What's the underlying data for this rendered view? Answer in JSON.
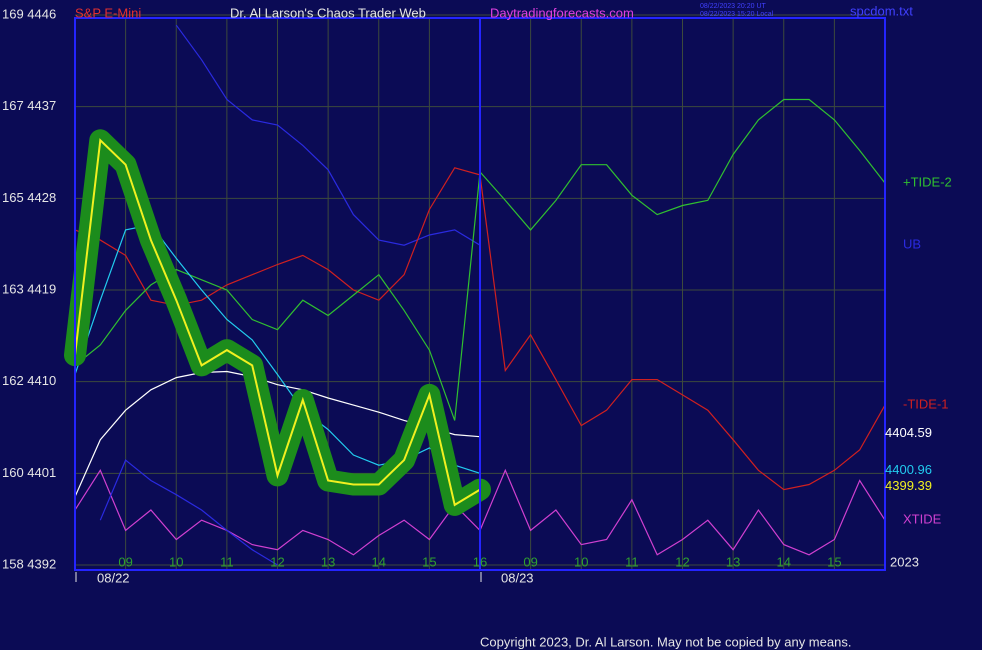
{
  "chart_data": {
    "type": "line",
    "title": "Dr. Al Larson's Chaos Trader Web",
    "instrument": "S&P E-Mini",
    "site": "Daytradingforecasts.com",
    "timestamp_ut": "08/22/2023 20:20 UT",
    "timestamp_local": "08/22/2023 15:20 Local",
    "file": "spcdom.txt",
    "year": "2023",
    "dates": [
      "08/22",
      "08/23"
    ],
    "copyright": "Copyright 2023, Dr. Al Larson. May not be copied by any means.",
    "grid": true,
    "xlim": [
      0,
      16
    ],
    "ylim": [
      4392,
      4446
    ],
    "xticks": [
      {
        "value": 1,
        "label": "09"
      },
      {
        "value": 2,
        "label": "10"
      },
      {
        "value": 3,
        "label": "11"
      },
      {
        "value": 4,
        "label": "12"
      },
      {
        "value": 5,
        "label": "13"
      },
      {
        "value": 6,
        "label": "14"
      },
      {
        "value": 7,
        "label": "15"
      },
      {
        "value": 8,
        "label": "16"
      },
      {
        "value": 9,
        "label": "09"
      },
      {
        "value": 10,
        "label": "10"
      },
      {
        "value": 11,
        "label": "11"
      },
      {
        "value": 12,
        "label": "12"
      },
      {
        "value": 13,
        "label": "13"
      },
      {
        "value": 14,
        "label": "14"
      },
      {
        "value": 15,
        "label": "15"
      }
    ],
    "yticks": [
      {
        "value": 4446,
        "label": "169 4446"
      },
      {
        "value": 4437,
        "label": "167 4437"
      },
      {
        "value": 4428,
        "label": "165 4428"
      },
      {
        "value": 4419,
        "label": "163 4419"
      },
      {
        "value": 4410,
        "label": "162 4410"
      },
      {
        "value": 4401,
        "label": "160 4401"
      },
      {
        "value": 4392,
        "label": "158 4392"
      }
    ],
    "x": [
      0,
      0.5,
      1,
      1.5,
      2,
      2.5,
      3,
      3.5,
      4,
      4.5,
      5,
      5.5,
      6,
      6.5,
      7,
      7.5,
      8,
      8.5,
      9,
      9.5,
      10,
      10.5,
      11,
      11.5,
      12,
      12.5,
      13,
      13.5,
      14,
      14.5,
      15,
      15.5,
      16
    ],
    "series": [
      {
        "name": "XTIDE",
        "color": "#d040d0",
        "values": [
          4397.4,
          4401.3,
          4395.4,
          4397.4,
          4394.5,
          4396.4,
          4395.4,
          4394.0,
          4393.5,
          4395.4,
          4394.5,
          4393.0,
          4394.9,
          4396.4,
          4394.5,
          4397.9,
          4395.4,
          4401.3,
          4395.4,
          4397.4,
          4394.0,
          4394.5,
          4398.4,
          4393.0,
          4394.5,
          4396.4,
          4393.5,
          4397.4,
          4394.0,
          4393.0,
          4394.5,
          4400.3,
          4396.4
        ]
      },
      {
        "color": "#2a2ae0",
        "values": [
          null,
          4396.4,
          4402.3,
          4400.3,
          4398.9,
          4397.4,
          4395.4,
          4393.5,
          4392.0,
          null,
          null,
          null,
          null,
          null,
          null,
          null,
          null,
          null,
          null,
          null,
          null,
          null,
          null,
          null,
          null,
          null,
          null,
          null,
          null,
          null,
          null,
          null,
          null
        ]
      },
      {
        "name": "UB",
        "color": "#2a2ae0",
        "values": [
          null,
          null,
          null,
          null,
          4445.0,
          4441.6,
          4437.7,
          4435.7,
          4435.2,
          4433.2,
          4430.8,
          4426.4,
          4423.9,
          4423.4,
          4424.4,
          4424.9,
          4423.4,
          null,
          null,
          null,
          null,
          null,
          null,
          null,
          null,
          null,
          null,
          null,
          null,
          null,
          null,
          null,
          null
        ]
      },
      {
        "name": "-TIDE-1",
        "color": "#d02020",
        "values": [
          4424.9,
          4423.9,
          4422.4,
          4418.0,
          4417.5,
          4418.0,
          4419.5,
          4420.5,
          4421.5,
          4422.4,
          4421.0,
          4419.0,
          4418.0,
          4420.5,
          4426.9,
          4431.0,
          4430.3,
          4411.1,
          4414.6,
          4410.2,
          4405.7,
          4407.2,
          4410.2,
          4410.2,
          4408.7,
          4407.2,
          4404.3,
          4401.3,
          4399.4,
          4399.9,
          4401.3,
          4403.3,
          4407.7
        ]
      },
      {
        "name": "+TIDE-2",
        "color": "#30c030",
        "values": [
          4411.6,
          4413.6,
          4417.0,
          4419.5,
          4421.0,
          4420.0,
          4419.0,
          4416.1,
          4415.1,
          4418.0,
          4416.5,
          4418.5,
          4420.5,
          4417.0,
          4413.1,
          4406.2,
          4430.6,
          4427.8,
          4424.9,
          4427.8,
          4431.3,
          4431.3,
          4428.3,
          4426.4,
          4427.3,
          4427.8,
          4432.3,
          4435.7,
          4437.7,
          4437.7,
          4435.7,
          4432.7,
          4429.5
        ]
      },
      {
        "color": "#ffffff",
        "end_label": "4404.59",
        "values": [
          4398.7,
          4404.3,
          4407.2,
          4409.2,
          4410.4,
          4410.9,
          4411.0,
          4410.5,
          4409.7,
          4409.2,
          4408.4,
          4407.7,
          4407.0,
          4406.2,
          4405.5,
          4404.8,
          4404.6,
          null,
          null,
          null,
          null,
          null,
          null,
          null,
          null,
          null,
          null,
          null,
          null,
          null,
          null,
          null,
          null
        ]
      },
      {
        "color": "#22ccee",
        "end_label": "4400.96",
        "values": [
          4410.7,
          4418.0,
          4424.9,
          4425.4,
          4422.1,
          4419.0,
          4416.1,
          4414.1,
          4410.7,
          4407.2,
          4405.3,
          4402.8,
          4401.8,
          4402.3,
          4403.5,
          4401.8,
          4401.0,
          null,
          null,
          null,
          null,
          null,
          null,
          null,
          null,
          null,
          null,
          null,
          null,
          null,
          null,
          null,
          null
        ]
      },
      {
        "color": "#f0f020",
        "halo": "#1c8c1c",
        "end_label": "4399.39",
        "values": [
          4412.6,
          4433.7,
          4431.3,
          4423.9,
          4418.0,
          4411.6,
          4413.1,
          4411.6,
          4400.8,
          4408.2,
          4400.3,
          4399.9,
          4399.9,
          4402.3,
          4408.7,
          4397.9,
          4399.4,
          null,
          null,
          null,
          null,
          null,
          null,
          null,
          null,
          null,
          null,
          null,
          null,
          null,
          null,
          null,
          null
        ]
      }
    ]
  }
}
